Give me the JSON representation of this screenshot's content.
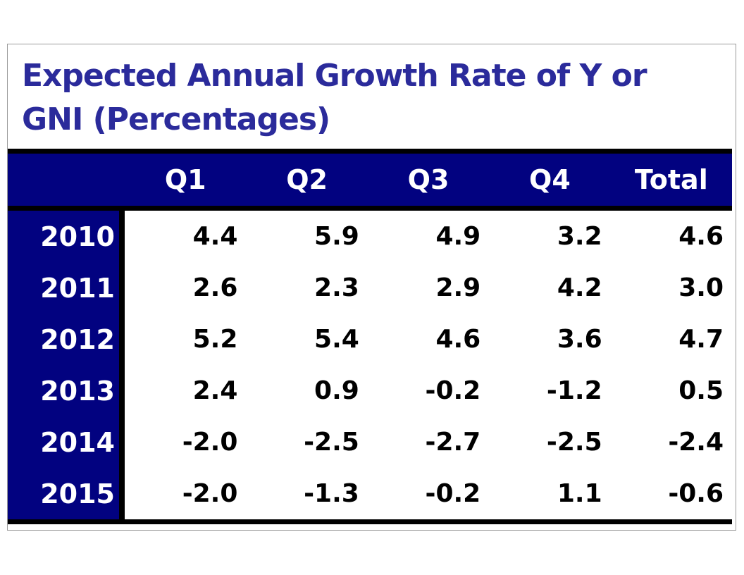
{
  "title": "Expected Annual Growth Rate of Y or GNI (Percentages)",
  "title_lines": {
    "0": "Expected Annual Growth Rate of Y or",
    "1": "GNI (Percentages)"
  },
  "colors": {
    "header_bg": "#020280",
    "header_text": "#ffffff",
    "title_text": "#2b2b9b",
    "data_text": "#000000",
    "border_black": "#000000",
    "frame_border": "#9b9b9b"
  },
  "chart_data": {
    "type": "table",
    "title": "Expected Annual Growth Rate of Y or GNI (Percentages)",
    "columns": [
      "Q1",
      "Q2",
      "Q3",
      "Q4",
      "Total"
    ],
    "rows": [
      {
        "year": "2010",
        "values": [
          "4.4",
          "5.9",
          "4.9",
          "3.2",
          "4.6"
        ]
      },
      {
        "year": "2011",
        "values": [
          "2.6",
          "2.3",
          "2.9",
          "4.2",
          "3.0"
        ]
      },
      {
        "year": "2012",
        "values": [
          "5.2",
          "5.4",
          "4.6",
          "3.6",
          "4.7"
        ]
      },
      {
        "year": "2013",
        "values": [
          "2.4",
          "0.9",
          "-0.2",
          "-1.2",
          "0.5"
        ]
      },
      {
        "year": "2014",
        "values": [
          "-2.0",
          "-2.5",
          "-2.7",
          "-2.5",
          "-2.4"
        ]
      },
      {
        "year": "2015",
        "values": [
          "-2.0",
          "-1.3",
          "-0.2",
          "1.1",
          "-0.6"
        ]
      }
    ],
    "layout": {
      "header_row_position": "top",
      "year_column_position": "left",
      "values_unit": "percent",
      "grid": "off"
    }
  }
}
